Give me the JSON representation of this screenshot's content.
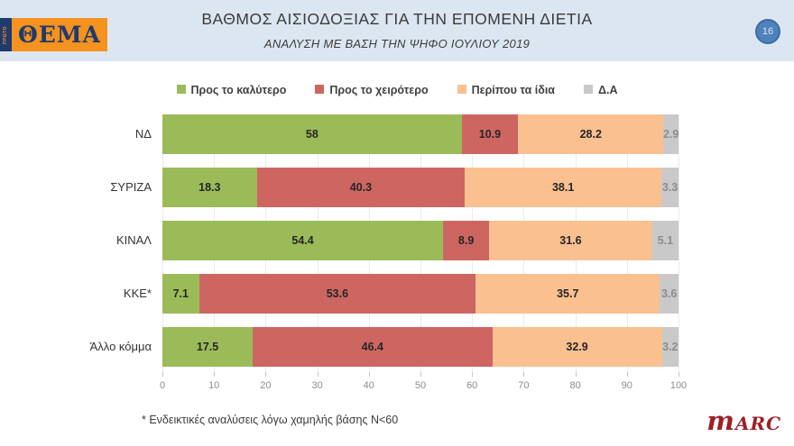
{
  "header": {
    "logo": {
      "brand_top": "ΠΡΩΤΟ",
      "brand_main": "ΘΕΜΑ"
    },
    "title": "ΒΑΘΜΟΣ ΑΙΣΙΟΔΟΞΙΑΣ ΓΙΑ ΤΗΝ ΕΠΟΜΕΝΗ ΔΙΕΤΙΑ",
    "subtitle": "ΑΝΑΛΥΣΗ ΜΕ ΒΑΣΗ ΤΗΝ ΨΗΦΟ ΙΟΥΛΙΟΥ 2019",
    "page_number": "16"
  },
  "chart_data": {
    "type": "bar",
    "orientation": "horizontal",
    "stacked": true,
    "categories": [
      "ΝΔ",
      "ΣΥΡΙΖΑ",
      "ΚΙΝΑΛ",
      "ΚΚΕ*",
      "Άλλο κόμμα"
    ],
    "series": [
      {
        "name": "Προς το καλύτερο",
        "color": "#9bbb59",
        "label_color": "#262626",
        "values": [
          58,
          18.3,
          54.4,
          7.1,
          17.5
        ]
      },
      {
        "name": "Προς το χειρότερο",
        "color": "#cd6661",
        "label_color": "#262626",
        "values": [
          10.9,
          40.3,
          8.9,
          53.6,
          46.4
        ]
      },
      {
        "name": "Περίπου τα ίδια",
        "color": "#fac090",
        "label_color": "#262626",
        "values": [
          28.2,
          38.1,
          31.6,
          35.7,
          32.9
        ]
      },
      {
        "name": "Δ.Α",
        "color": "#c9c9c9",
        "label_color": "#8c8c8c",
        "values": [
          2.9,
          3.3,
          5.1,
          3.6,
          3.2
        ]
      }
    ],
    "xlim": [
      0,
      100
    ],
    "x_ticks": [
      0,
      10,
      20,
      30,
      40,
      50,
      60,
      70,
      80,
      90,
      100
    ],
    "grid": true,
    "legend_position": "top"
  },
  "footnote": "* Ενδεικτικές αναλύσεις λόγω χαμηλής βάσης N<60",
  "branding": {
    "agency_first_letter": "m",
    "agency_rest": "arc"
  }
}
